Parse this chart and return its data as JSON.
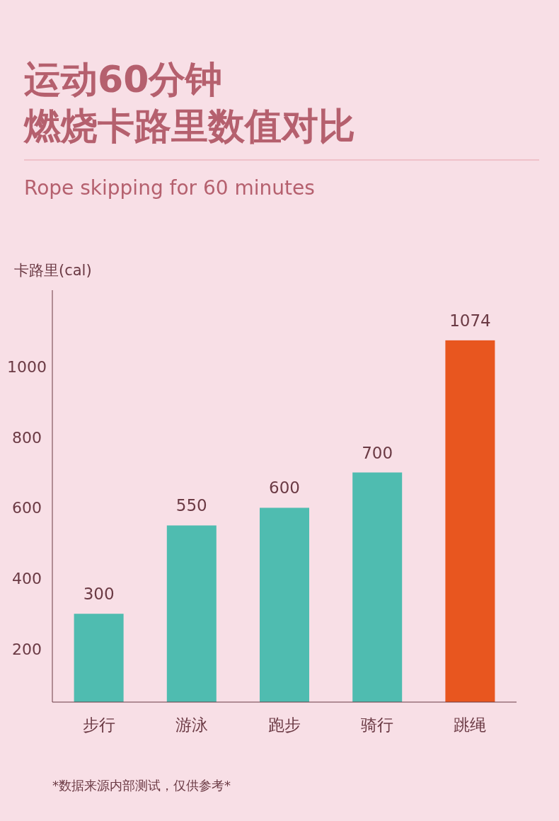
{
  "chart_data": {
    "type": "bar",
    "title": "运动60分钟",
    "subtitle": "燃烧卡路里数值对比",
    "ylabel": "卡路里(cal)",
    "categories": [
      "步行",
      "游泳",
      "跑步",
      "骑行",
      "跳绳"
    ],
    "values": [
      300,
      550,
      600,
      700,
      1074
    ],
    "colors": [
      "#4fbcb0",
      "#4fbcb0",
      "#4fbcb0",
      "#4fbcb0",
      "#e8561f"
    ],
    "ylim": [
      50,
      1216
    ],
    "yticks": [
      200,
      400,
      600,
      800,
      1000
    ],
    "data_labels": true,
    "annotations": [
      "Rope skipping for 60 minutes",
      "*数据来源内部测试，仅供参考*"
    ]
  }
}
